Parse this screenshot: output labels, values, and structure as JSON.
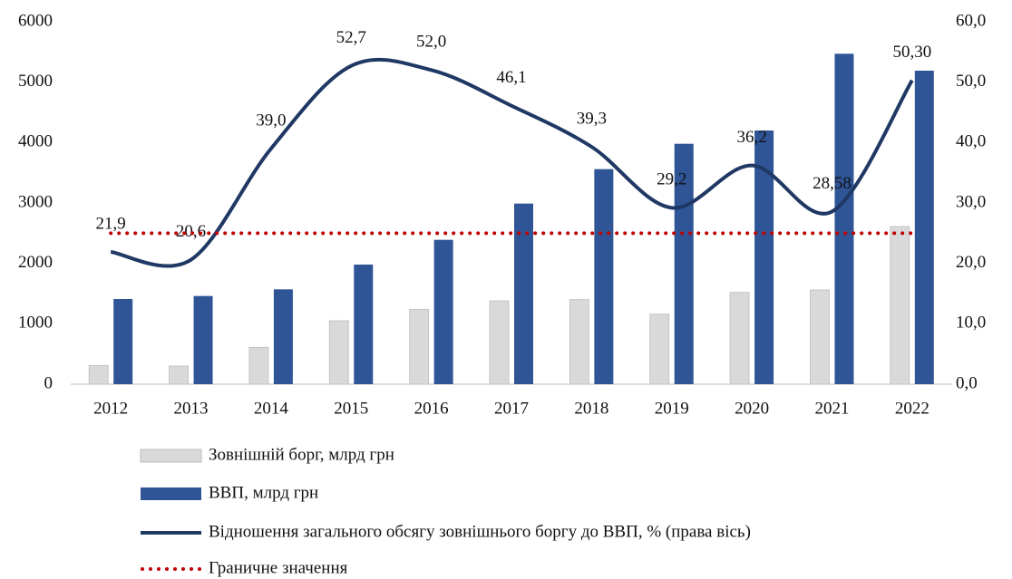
{
  "chart_data": {
    "type": "bar",
    "categories": [
      "2012",
      "2013",
      "2014",
      "2015",
      "2016",
      "2017",
      "2018",
      "2019",
      "2020",
      "2021",
      "2022"
    ],
    "ylim": [
      0,
      6000
    ],
    "yticks": [
      0,
      1000,
      2000,
      3000,
      4000,
      5000,
      6000
    ],
    "y2lim": [
      0,
      60
    ],
    "y2ticks": [
      {
        "value": 0,
        "label": "0,0"
      },
      {
        "value": 10,
        "label": "10,0"
      },
      {
        "value": 20,
        "label": "20,0"
      },
      {
        "value": 30,
        "label": "30,0"
      },
      {
        "value": 40,
        "label": "40,0"
      },
      {
        "value": 50,
        "label": "50,0"
      },
      {
        "value": 60,
        "label": "60,0"
      }
    ],
    "legend": "bottom",
    "series": [
      {
        "name": "Зовнішній борг, млрд грн",
        "type": "bar",
        "color": "#d9d9d9",
        "values": [
          310,
          300,
          610,
          1050,
          1240,
          1380,
          1400,
          1160,
          1520,
          1560,
          2610
        ]
      },
      {
        "name": "ВВП, млрд грн",
        "type": "bar",
        "color": "#2f5597",
        "values": [
          1410,
          1460,
          1570,
          1980,
          2390,
          2990,
          3560,
          3980,
          4200,
          5470,
          5190
        ]
      },
      {
        "name": "Відношення загального обсягу зовнішнього боргу до ВВП, % (права вісь)",
        "type": "line",
        "axis": "y2",
        "color": "#1f3864",
        "style": "solid",
        "values": [
          21.9,
          20.6,
          39.0,
          52.7,
          52.0,
          46.1,
          39.3,
          29.2,
          36.2,
          28.58,
          50.3
        ],
        "value_labels": [
          "21,9",
          "20,6",
          "39,0",
          "52,7",
          "52,0",
          "46,1",
          "39,3",
          "29,2",
          "36,2",
          "28,58",
          "50,30"
        ]
      },
      {
        "name": "Граничне значення",
        "type": "line",
        "axis": "y2",
        "color": "#c00000",
        "style": "dotted",
        "values": [
          25,
          25,
          25,
          25,
          25,
          25,
          25,
          25,
          25,
          25,
          25
        ]
      }
    ]
  }
}
